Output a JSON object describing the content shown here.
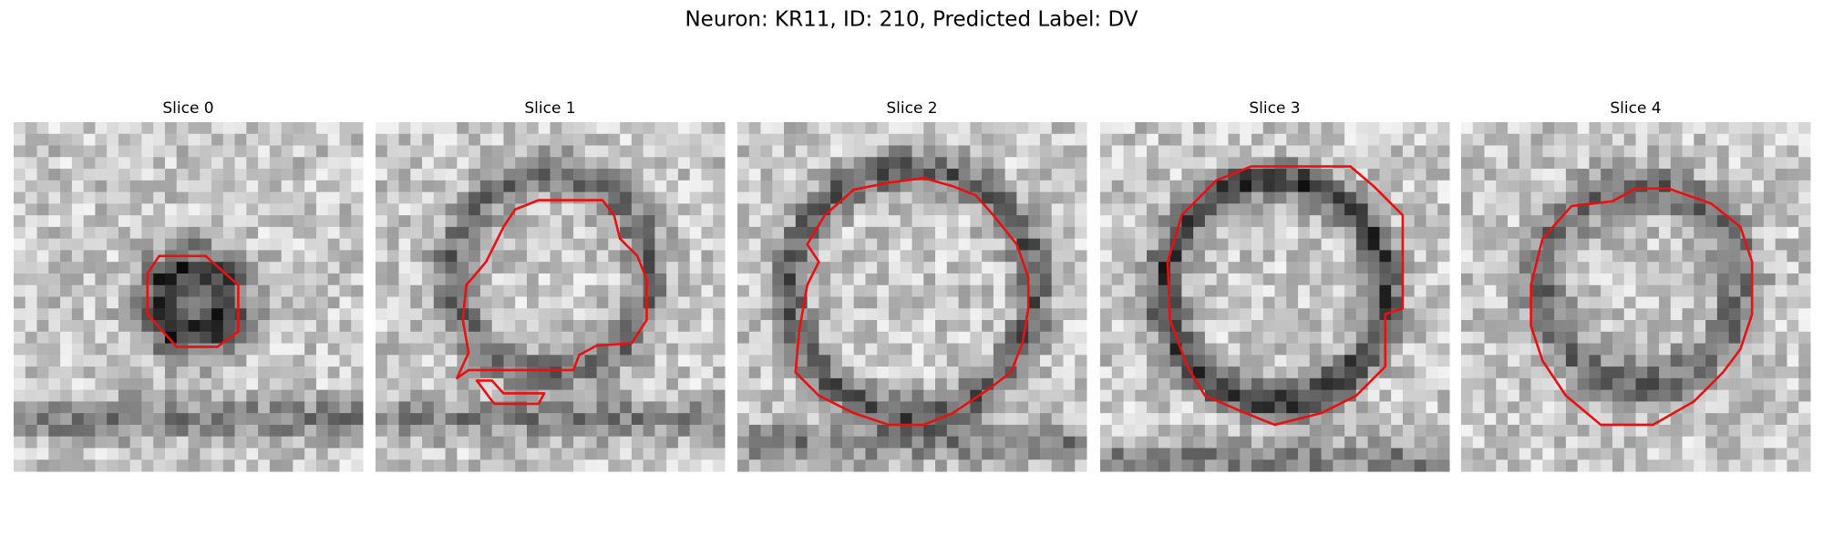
{
  "title": "Neuron: KR11, ID: 210, Predicted Label: DV",
  "panels": [
    {
      "title": "Slice 0"
    },
    {
      "title": "Slice 1"
    },
    {
      "title": "Slice 2"
    },
    {
      "title": "Slice 3"
    },
    {
      "title": "Slice 4"
    }
  ]
}
